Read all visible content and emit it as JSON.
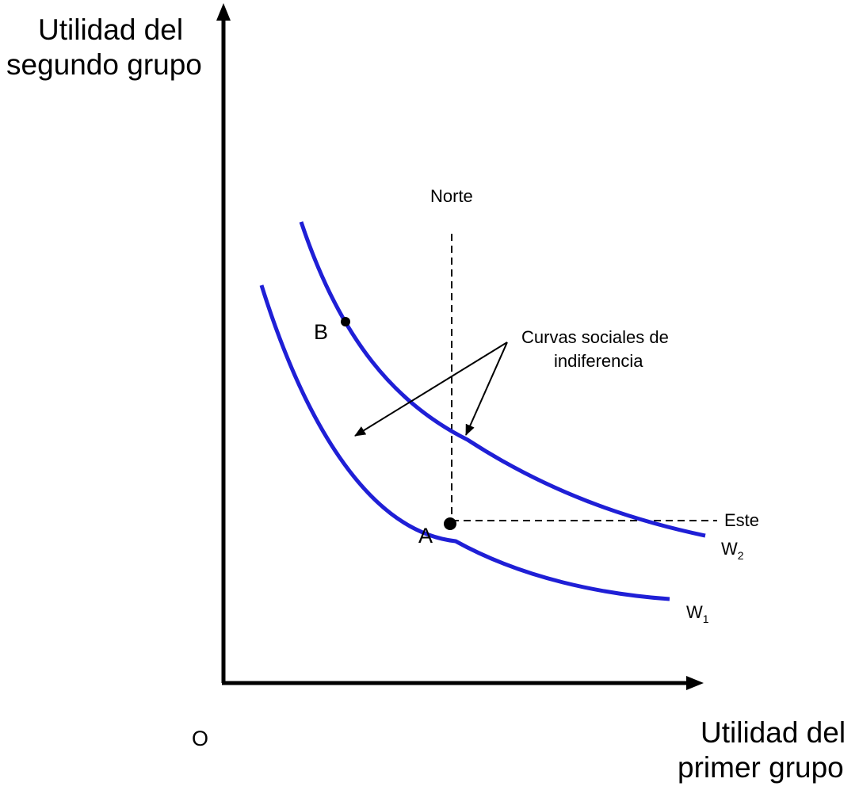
{
  "diagram": {
    "y_axis_label_line1": "Utilidad del",
    "y_axis_label_line2": "segundo grupo",
    "x_axis_label_line1": "Utilidad del",
    "x_axis_label_line2": "primer grupo",
    "origin_label": "O",
    "north_label": "Norte",
    "east_label": "Este",
    "point_a_label": "A",
    "point_b_label": "B",
    "annotation_line1": "Curvas sociales de",
    "annotation_line2": "indiferencia",
    "curve1_label": "W",
    "curve1_subscript": "1",
    "curve2_label": "W",
    "curve2_subscript": "2",
    "colors": {
      "curve": "#1f1fd6",
      "axis": "#000000",
      "guide": "#000000"
    }
  }
}
